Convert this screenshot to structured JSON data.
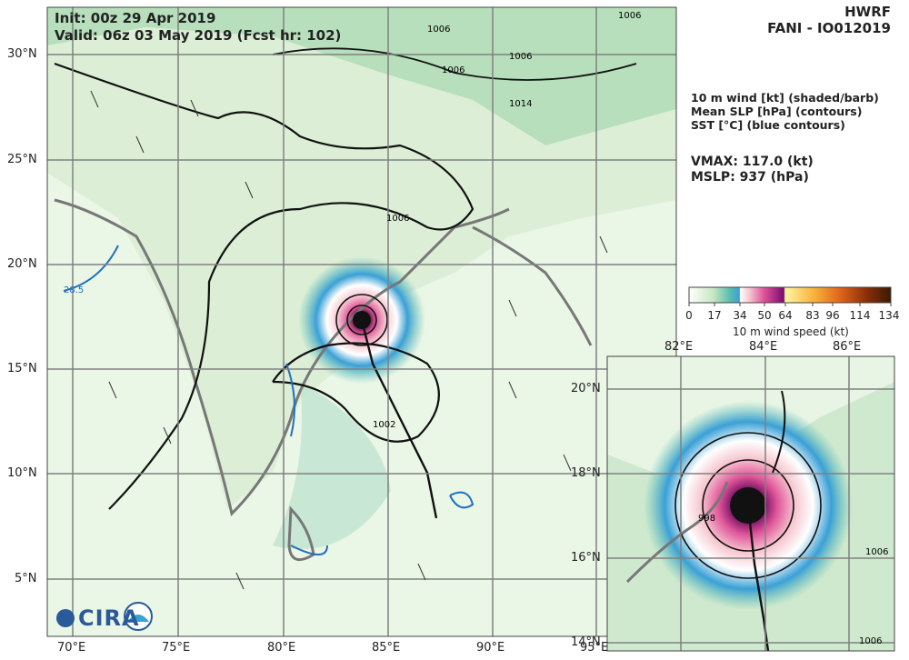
{
  "header": {
    "model": "HWRF",
    "storm": "FANI - IO012019",
    "init": "Init:   00z 29 Apr 2019",
    "valid": "Valid: 06z 03 May 2019 (Fcst hr: 102)"
  },
  "fields": [
    "10 m wind [kt] (shaded/barb)",
    "Mean SLP [hPa] (contours)",
    "SST [°C] (blue contours)"
  ],
  "stats": {
    "vmax": "VMAX: 117.0 (kt)",
    "mslp": "MSLP:  937 (hPa)"
  },
  "colorbar": {
    "title": "10 m wind speed (kt)",
    "ticks": [
      "0",
      "17",
      "34",
      "50",
      "64",
      "83",
      "96",
      "114",
      "134"
    ],
    "colors": [
      "#ffffff",
      "#c8e6c2",
      "#5dbfae",
      "#3aa0d6",
      "#ffffff",
      "#f6c6cf",
      "#e0559a",
      "#7a0b6e",
      "#fff6a0",
      "#f7b23c",
      "#e0641a",
      "#8a2e08",
      "#3a1a04"
    ]
  },
  "main_map": {
    "lon_labels": [
      "70°E",
      "75°E",
      "80°E",
      "85°E",
      "90°E",
      "95°E"
    ],
    "lat_labels": [
      "30°N",
      "25°N",
      "20°N",
      "15°N",
      "10°N",
      "5°N"
    ],
    "contour_labels": [
      "1006",
      "1006",
      "1006",
      "1014",
      "1006",
      "1006",
      "1002",
      "28.5"
    ]
  },
  "inset_map": {
    "lon_labels": [
      "82°E",
      "84°E",
      "86°E"
    ],
    "lat_labels": [
      "20°N",
      "18°N",
      "16°N",
      "14°N"
    ],
    "contour_labels": [
      "998",
      "1006",
      "1006"
    ]
  },
  "logo": {
    "text": "CIRA"
  }
}
